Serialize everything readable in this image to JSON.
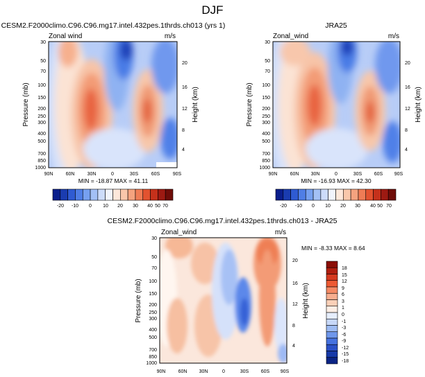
{
  "page": {
    "title": "DJF"
  },
  "colors": {
    "colormap": "blue-white-red diverging"
  },
  "chart_data": [
    {
      "type": "heatmap",
      "panel": "model",
      "title": "CESM2.F2000climo.C96.C96.mg17.intel.432pes.1thrds.ch013 (yrs 1)",
      "subtitle_left": "Zonal wind",
      "subtitle_right": "m/s",
      "ylabel": "Pressure (mb)",
      "ylabel_right": "Height (km)",
      "x_ticks": [
        "90N",
        "60N",
        "30N",
        "0",
        "30S",
        "60S",
        "90S"
      ],
      "y_ticks": [
        "30",
        "50",
        "70",
        "100",
        "150",
        "200",
        "250",
        "300",
        "400",
        "500",
        "700",
        "850",
        "1000"
      ],
      "y_ticks_right": [
        "20",
        "16",
        "12",
        "8",
        "4"
      ],
      "stats": "MIN = -18.87  MAX =  41.11",
      "colorbar_levels": [
        "-20",
        "-10",
        "0",
        "10",
        "20",
        "30",
        "40",
        "50",
        "70"
      ],
      "min": -18.87,
      "max": 41.11
    },
    {
      "type": "heatmap",
      "panel": "obs",
      "title": "JRA25",
      "subtitle_left": "Zonal_wind",
      "subtitle_right": "m/s",
      "ylabel": "Pressure (mb)",
      "ylabel_right": "Height (km)",
      "x_ticks": [
        "90N",
        "60N",
        "30N",
        "0",
        "30S",
        "60S",
        "90S"
      ],
      "y_ticks": [
        "30",
        "50",
        "70",
        "100",
        "150",
        "200",
        "250",
        "300",
        "400",
        "500",
        "700",
        "850",
        "1000"
      ],
      "y_ticks_right": [
        "20",
        "16",
        "12",
        "8",
        "4"
      ],
      "stats": "MIN = -16.93  MAX =  42.30",
      "colorbar_levels": [
        "-20",
        "-10",
        "0",
        "10",
        "20",
        "30",
        "40",
        "50",
        "70"
      ],
      "min": -16.93,
      "max": 42.3
    },
    {
      "type": "heatmap",
      "panel": "diff",
      "title": "CESM2.F2000climo.C96.C96.mg17.intel.432pes.1thrds.ch013 - JRA25",
      "subtitle_left": "Zonal_wind",
      "subtitle_right": "m/s",
      "ylabel": "Pressure (mb)",
      "ylabel_right": "Height (km)",
      "x_ticks": [
        "90N",
        "60N",
        "30N",
        "0",
        "30S",
        "60S",
        "90S"
      ],
      "y_ticks": [
        "30",
        "50",
        "70",
        "100",
        "150",
        "200",
        "250",
        "300",
        "400",
        "500",
        "700",
        "850",
        "1000"
      ],
      "y_ticks_right": [
        "20",
        "16",
        "12",
        "8",
        "4"
      ],
      "stats": "MIN =  -8.33  MAX =   8.64",
      "colorbar_levels": [
        "18",
        "15",
        "12",
        "9",
        "6",
        "3",
        "1",
        "0",
        "-1",
        "-3",
        "-6",
        "-9",
        "-12",
        "-15",
        "-18"
      ],
      "min": -8.33,
      "max": 8.64
    }
  ]
}
